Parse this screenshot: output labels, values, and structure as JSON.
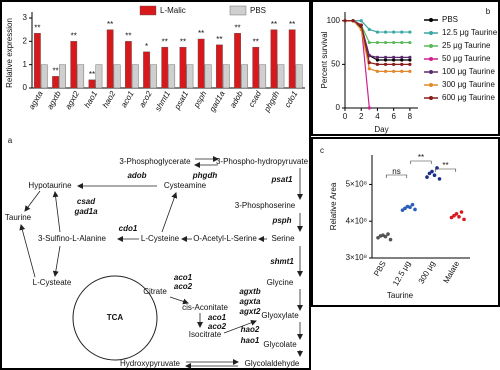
{
  "panel_labels": [
    "a",
    "b",
    "c"
  ],
  "chart_data": [
    {
      "type": "bar",
      "ylabel": "Relative expression",
      "categories": [
        "agxta",
        "agxtb",
        "agxt2",
        "hao1",
        "hao2",
        "aco1",
        "aco2",
        "shmt1",
        "psat1",
        "psph",
        "gad1a",
        "adob",
        "csad",
        "phgdh",
        "cdo1"
      ],
      "series": [
        {
          "name": "L-Malic",
          "color": "#d7191c",
          "values": [
            2.35,
            0.5,
            2.0,
            0.35,
            2.5,
            2.0,
            1.55,
            1.75,
            1.75,
            2.1,
            1.85,
            2.35,
            1.75,
            2.5,
            2.5
          ],
          "significance": [
            "**",
            "**",
            "**",
            "**",
            "**",
            "**",
            "*",
            "**",
            "**",
            "**",
            "**",
            "**",
            "**",
            "**",
            "**"
          ]
        },
        {
          "name": "PBS",
          "color": "#cfcfcf",
          "values": [
            1,
            1,
            1,
            1,
            1,
            1,
            1,
            1,
            1,
            1,
            1,
            1,
            1,
            1,
            1
          ]
        }
      ],
      "ylim": [
        0,
        3
      ],
      "yticks": [
        0,
        1,
        2,
        3
      ]
    },
    {
      "type": "line",
      "xlabel": "Day",
      "ylabel": "Percent survival",
      "x": [
        0,
        1,
        2,
        3,
        4,
        5,
        6,
        7,
        8
      ],
      "series": [
        {
          "name": "PBS",
          "color": "#000000",
          "values": [
            100,
            100,
            92,
            60,
            55,
            55,
            55,
            55,
            55
          ]
        },
        {
          "name": "12.5 μg Taurine",
          "color": "#3aa7a3",
          "values": [
            100,
            100,
            100,
            90,
            87,
            87,
            87,
            87,
            87
          ]
        },
        {
          "name": "25 μg Taurine",
          "color": "#5cb85c",
          "values": [
            100,
            100,
            95,
            75,
            75,
            75,
            75,
            75,
            75
          ]
        },
        {
          "name": "50 μg Taurine",
          "color": "#d0208f",
          "values": [
            100,
            100,
            95,
            0,
            null,
            null,
            null,
            null,
            null
          ]
        },
        {
          "name": "100 μg Taurine",
          "color": "#5b2c6f",
          "values": [
            100,
            100,
            95,
            60,
            58,
            58,
            58,
            58,
            58
          ]
        },
        {
          "name": "300 μg Taurine",
          "color": "#e08a2c",
          "values": [
            100,
            100,
            90,
            45,
            42,
            42,
            42,
            42,
            42
          ]
        },
        {
          "name": "600 μg Taurine",
          "color": "#8b1a1a",
          "values": [
            100,
            100,
            95,
            52,
            50,
            50,
            50,
            50,
            50
          ]
        }
      ],
      "xlim": [
        0,
        9
      ],
      "xticks": [
        0,
        2,
        4,
        6,
        8
      ],
      "ylim": [
        0,
        110
      ],
      "yticks": [
        0,
        50,
        100
      ]
    },
    {
      "type": "dot",
      "ylabel": "Relative Area",
      "xlabel": "Taurine",
      "categories": [
        "PBS",
        "12.5 μg",
        "300 μg",
        "Malate"
      ],
      "colors": [
        "#555555",
        "#2b5cb8",
        "#1b2f8a",
        "#d7191c"
      ],
      "points": [
        [
          355000000,
          360000000,
          362000000,
          358000000,
          365000000,
          350000000
        ],
        [
          430000000,
          435000000,
          440000000,
          438000000,
          445000000,
          432000000
        ],
        [
          520000000,
          530000000,
          535000000,
          525000000,
          545000000,
          515000000
        ],
        [
          410000000,
          415000000,
          420000000,
          412000000,
          425000000,
          405000000
        ]
      ],
      "ylim": [
        300000000,
        580000000
      ],
      "yticks": [
        {
          "value": 300000000,
          "label": "3×10⁸"
        },
        {
          "value": 400000000,
          "label": "4×10⁸"
        },
        {
          "value": 500000000,
          "label": "5×10⁸"
        }
      ],
      "brackets": [
        "ns",
        "**",
        "**"
      ]
    }
  ],
  "diagram": {
    "center_label": "TCA",
    "metabolites": [
      "3-Phosphoglycerate",
      "3-Phospho-hydropyruvate",
      "Cysteamine",
      "Hypotaurine",
      "3-Phosphoserine",
      "Taurine",
      "3-Sulfino-L-Alanine",
      "L-Cysteine",
      "O-Acetyl-L-Serine",
      "Serine",
      "L-Cysteate",
      "Glycine",
      "Citrate",
      "cis-Aconitate",
      "Isocitrate",
      "Glyoxylate",
      "Glycolate",
      "Hydroxypyruvate",
      "Glycolaldehyde"
    ],
    "enzymes": [
      {
        "text": "phgdh",
        "color": "#d7191c"
      },
      {
        "text": "adob",
        "color": "#d7191c"
      },
      {
        "text": "psat1",
        "color": "#d7191c"
      },
      {
        "text": "psph",
        "color": "#d7191c"
      },
      {
        "text": "csad",
        "color": "#d7191c"
      },
      {
        "text": "gad1a",
        "color": "#333333"
      },
      {
        "text": "cdo1",
        "color": "#d7191c"
      },
      {
        "text": "shmt1",
        "color": "#d7191c"
      },
      {
        "text": "aco1",
        "color": "#d7191c"
      },
      {
        "text": "aco2",
        "color": "#d7191c"
      },
      {
        "text": "aco1",
        "color": "#d7191c"
      },
      {
        "text": "aco2",
        "color": "#d7191c"
      },
      {
        "text": "agxtb",
        "color": "#2b3a9a"
      },
      {
        "text": "agxta",
        "color": "#d7191c"
      },
      {
        "text": "agxt2",
        "color": "#d7191c"
      },
      {
        "text": "hao2",
        "color": "#d7191c"
      },
      {
        "text": "hao1",
        "color": "#2b3a9a"
      }
    ]
  }
}
